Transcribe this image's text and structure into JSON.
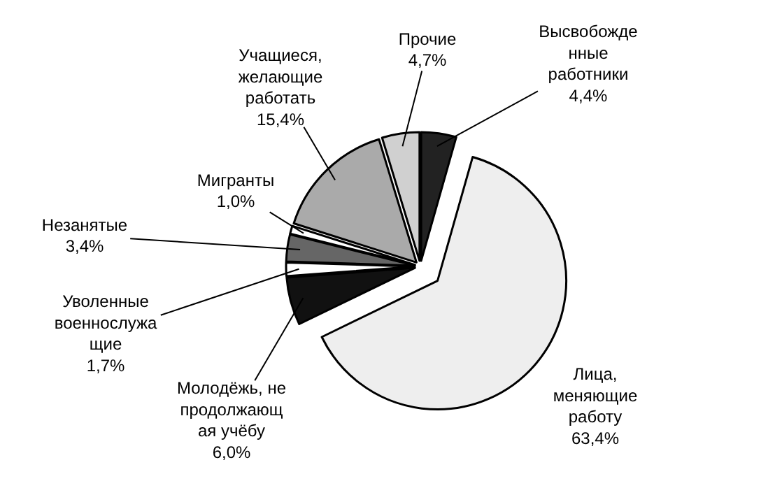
{
  "chart_data": {
    "type": "pie",
    "categories": [
      "Высвобожде\nнные\nработники",
      "Лица,\nменяющие\nработу",
      "Молодёжь, не\nпродолжающ\nая учёбу",
      "Уволенные\nвоеннослужа\nщие",
      "Незанятые",
      "Мигранты",
      "Учащиеся,\nжелающие\nработать",
      "Прочие"
    ],
    "values": [
      4.4,
      63.4,
      6.0,
      1.7,
      3.4,
      1.0,
      15.4,
      4.7
    ],
    "value_labels": [
      "4,4%",
      "63,4%",
      "6,0%",
      "1,7%",
      "3,4%",
      "1,0%",
      "15,4%",
      "4,7%"
    ],
    "colors": [
      "#222222",
      "#eeeeee",
      "#111111",
      "#ffffff",
      "#666666",
      "#ffffff",
      "#aaaaaa",
      "#d0d0d0"
    ]
  }
}
